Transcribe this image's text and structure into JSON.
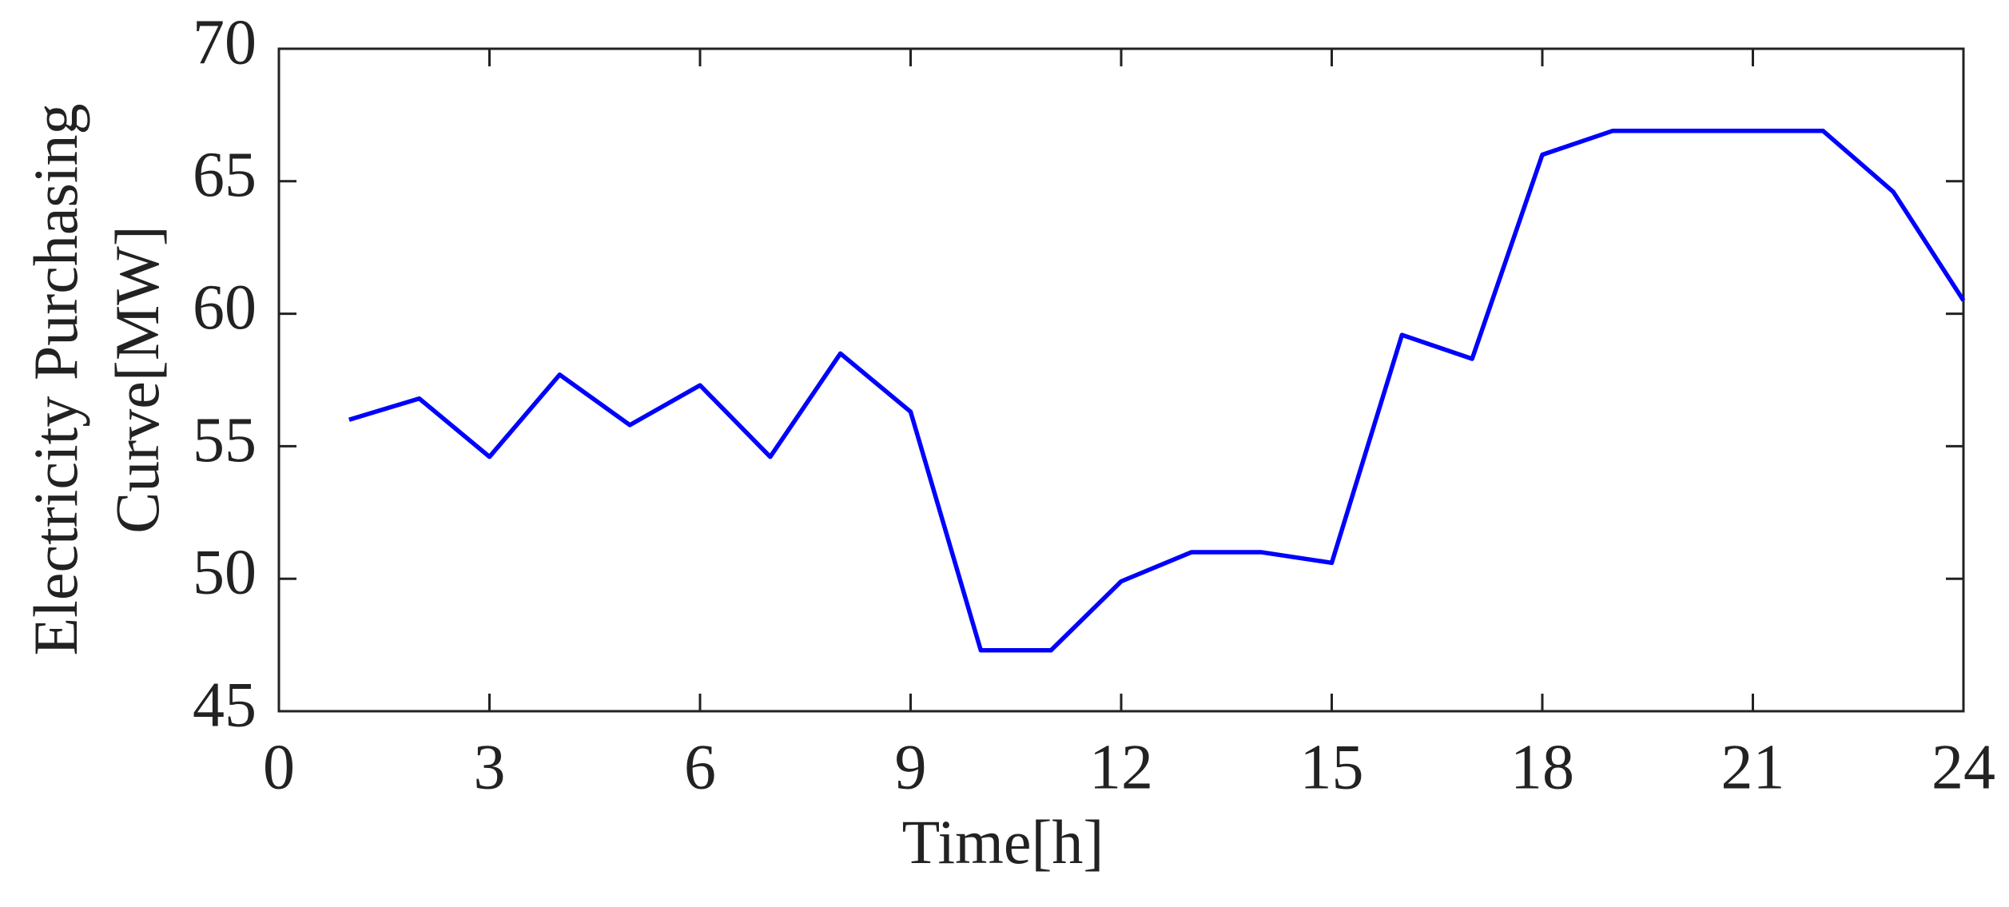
{
  "chart_data": {
    "type": "line",
    "xlabel": "Time[h]",
    "ylabel": [
      "Electricity Purchasing",
      "Curve[MW]"
    ],
    "x": [
      1,
      2,
      3,
      4,
      5,
      6,
      7,
      8,
      9,
      10,
      11,
      12,
      13,
      14,
      15,
      16,
      17,
      18,
      19,
      20,
      21,
      22,
      23,
      24
    ],
    "series": [
      {
        "color": "#0000ff",
        "values": [
          56.0,
          56.8,
          54.6,
          57.7,
          55.8,
          57.3,
          54.6,
          58.5,
          56.3,
          47.3,
          47.3,
          49.9,
          51.0,
          51.0,
          50.6,
          59.2,
          58.3,
          66.0,
          66.9,
          66.9,
          66.9,
          66.9,
          64.6,
          60.5
        ]
      }
    ],
    "xlim": [
      0,
      24
    ],
    "xticks": [
      0,
      3,
      6,
      9,
      12,
      15,
      18,
      21,
      24
    ],
    "ylim": [
      45,
      70
    ],
    "yticks": [
      45,
      50,
      55,
      60,
      65,
      70
    ],
    "grid": false
  }
}
